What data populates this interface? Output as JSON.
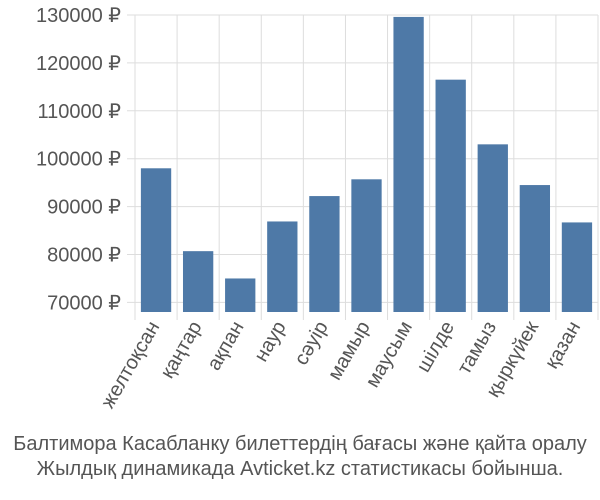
{
  "chart_data": {
    "type": "bar",
    "categories": [
      "желтоқсан",
      "қаңтар",
      "ақпан",
      "наур",
      "сәуір",
      "мамыр",
      "маусым",
      "шілде",
      "тамыз",
      "қыркүйек",
      "қазан"
    ],
    "values": [
      98000,
      80700,
      75000,
      86900,
      92200,
      95700,
      129600,
      116500,
      103000,
      94500,
      86700
    ],
    "y_ticks": [
      70000,
      80000,
      90000,
      100000,
      110000,
      120000,
      130000
    ],
    "y_tick_labels": [
      "70000 ₽",
      "80000 ₽",
      "90000 ₽",
      "100000 ₽",
      "110000 ₽",
      "120000 ₽",
      "130000 ₽"
    ],
    "ylim": [
      68000,
      130000
    ],
    "grid": true,
    "bar_color": "#4e79a7",
    "grid_color": "#dddddd"
  },
  "caption": {
    "line1": "Балтимора Касабланку билеттердің бағасы және қайта оралу",
    "line2": "Жылдық динамикада Avticket.kz статистикасы бойынша."
  }
}
